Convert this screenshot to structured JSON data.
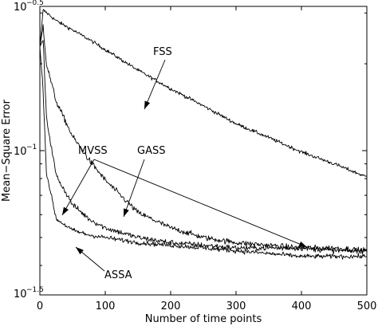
{
  "chart_data": {
    "type": "line",
    "xlabel": "Number of time points",
    "ylabel": "Mean−Square Error",
    "xlim": [
      0,
      500
    ],
    "ylim_exponent": [
      -1.5,
      -0.5
    ],
    "yscale": "log",
    "grid": false,
    "x_ticks": [
      0,
      100,
      200,
      300,
      400,
      500
    ],
    "y_tick_labels": [
      {
        "base": "10",
        "exp": "−0.5",
        "value_exponent": -0.5
      },
      {
        "base": "10",
        "exp": "−1",
        "value_exponent": -1.0
      },
      {
        "base": "10",
        "exp": "−1.5",
        "value_exponent": -1.5
      }
    ],
    "series": [
      {
        "name": "FSS",
        "x": [
          0,
          5,
          10,
          25,
          50,
          75,
          100,
          150,
          200,
          250,
          300,
          350,
          400,
          450,
          500
        ],
        "y": [
          0.229,
          0.307,
          0.301,
          0.282,
          0.262,
          0.243,
          0.224,
          0.19,
          0.164,
          0.143,
          0.124,
          0.111,
          0.099,
          0.09,
          0.081
        ],
        "noise": 0.014
      },
      {
        "name": "GASS",
        "x": [
          0,
          5,
          10,
          25,
          50,
          75,
          100,
          150,
          200,
          250,
          300,
          350,
          400,
          450,
          500
        ],
        "y": [
          0.229,
          0.272,
          0.2,
          0.148,
          0.112,
          0.093,
          0.079,
          0.061,
          0.054,
          0.05,
          0.048,
          0.047,
          0.046,
          0.046,
          0.045
        ],
        "noise": 0.022
      },
      {
        "name": "MVSS",
        "x": [
          0,
          5,
          10,
          25,
          50,
          75,
          100,
          150,
          200,
          250,
          300,
          350,
          400,
          450,
          500
        ],
        "y": [
          0.229,
          0.243,
          0.13,
          0.082,
          0.065,
          0.058,
          0.054,
          0.05,
          0.048,
          0.047,
          0.046,
          0.046,
          0.046,
          0.045,
          0.045
        ],
        "noise": 0.022
      },
      {
        "name": "ASSA",
        "x": [
          0,
          5,
          10,
          25,
          50,
          75,
          100,
          150,
          200,
          250,
          300,
          350,
          400,
          450,
          500
        ],
        "y": [
          0.229,
          0.162,
          0.084,
          0.058,
          0.053,
          0.051,
          0.05,
          0.048,
          0.047,
          0.046,
          0.045,
          0.044,
          0.043,
          0.043,
          0.043
        ],
        "noise": 0.018
      }
    ],
    "annotations": [
      {
        "text": "FSS"
      },
      {
        "text": "GASS"
      },
      {
        "text": "MVSS"
      },
      {
        "text": "ASSA"
      }
    ]
  }
}
